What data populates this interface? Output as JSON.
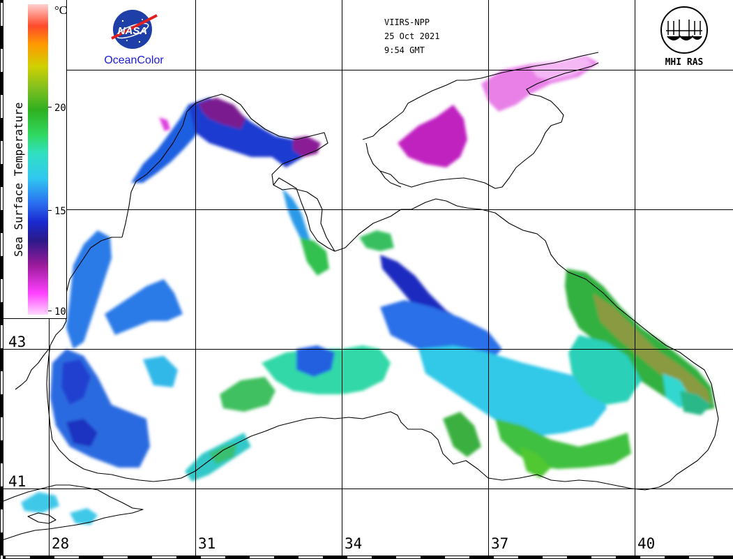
{
  "colorbar": {
    "title": "Sea Surface Temperature",
    "unit": "°C",
    "tick_labels": [
      "20",
      "15",
      "10"
    ],
    "min": 10,
    "max": 25,
    "stops": [
      "#ffd8ff",
      "#ff40ff",
      "#9a1a9a",
      "#2a1a8a",
      "#1a2ad0",
      "#2a70f0",
      "#30c8f0",
      "#30e0c0",
      "#30d860",
      "#30b020",
      "#80c020",
      "#d0d000",
      "#ff9a00",
      "#ff4a2a",
      "#ffd0d0"
    ]
  },
  "logos": {
    "nasa_text": "NASA",
    "oceancolor_text": "OceanColor",
    "mhi_text": "MHI RAS"
  },
  "header": {
    "sensor": "VIIRS-NPP",
    "date": "25 Oct 2021",
    "time": "9:54 GMT"
  },
  "grid": {
    "lon_labels": [
      "28",
      "31",
      "34",
      "37",
      "40"
    ],
    "lat_labels": [
      "43",
      "41"
    ]
  },
  "colors": {
    "coast": "#000000",
    "grid": "#000000",
    "nasa_blue": "#1e3ea8",
    "oceancolor_blue": "#1b1bd8",
    "nasa_red": "#e02020"
  }
}
